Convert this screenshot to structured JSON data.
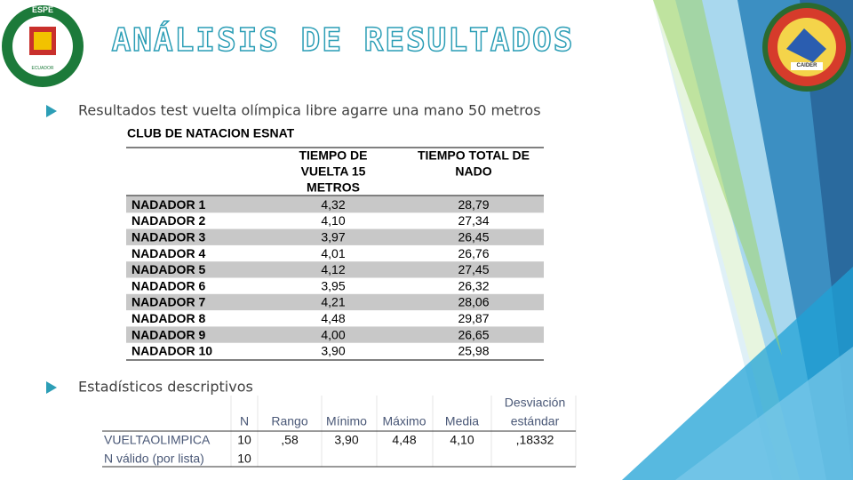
{
  "logos": {
    "left": {
      "top": "ESPE",
      "bottom": "ECUADOR"
    },
    "right": {
      "badge": "CAIDER"
    }
  },
  "title": "ANÁLISIS DE RESULTADOS",
  "bullets": [
    "Resultados test vuelta olímpica libre agarre una mano 50 metros",
    "Estadísticos descriptivos"
  ],
  "table1": {
    "caption": "CLUB DE NATACION ESNAT",
    "headers": [
      [
        "TIEMPO DE",
        "VUELTA 15",
        "METROS"
      ],
      [
        "TIEMPO TOTAL DE",
        "NADO"
      ]
    ],
    "rows": [
      [
        "NADADOR 1",
        "4,32",
        "28,79"
      ],
      [
        "NADADOR 2",
        "4,10",
        "27,34"
      ],
      [
        "NADADOR 3",
        "3,97",
        "26,45"
      ],
      [
        "NADADOR 4",
        "4,01",
        "26,76"
      ],
      [
        "NADADOR 5",
        "4,12",
        "27,45"
      ],
      [
        "NADADOR 6",
        "3,95",
        "26,32"
      ],
      [
        "NADADOR 7",
        "4,21",
        "28,06"
      ],
      [
        "NADADOR 8",
        "4,48",
        "29,87"
      ],
      [
        "NADADOR 9",
        "4,00",
        "26,65"
      ],
      [
        "NADADOR 10",
        "3,90",
        "25,98"
      ]
    ]
  },
  "table2": {
    "headers": [
      [
        "N"
      ],
      [
        "Rango"
      ],
      [
        "Mínimo"
      ],
      [
        "Máximo"
      ],
      [
        "Media"
      ],
      [
        "Desviación",
        "estándar"
      ]
    ],
    "rows": [
      [
        "VUELTAOLIMPICA",
        "10",
        ",58",
        "3,90",
        "4,48",
        "4,10",
        ",18332"
      ],
      [
        "N válido (por lista)",
        "10"
      ]
    ]
  }
}
